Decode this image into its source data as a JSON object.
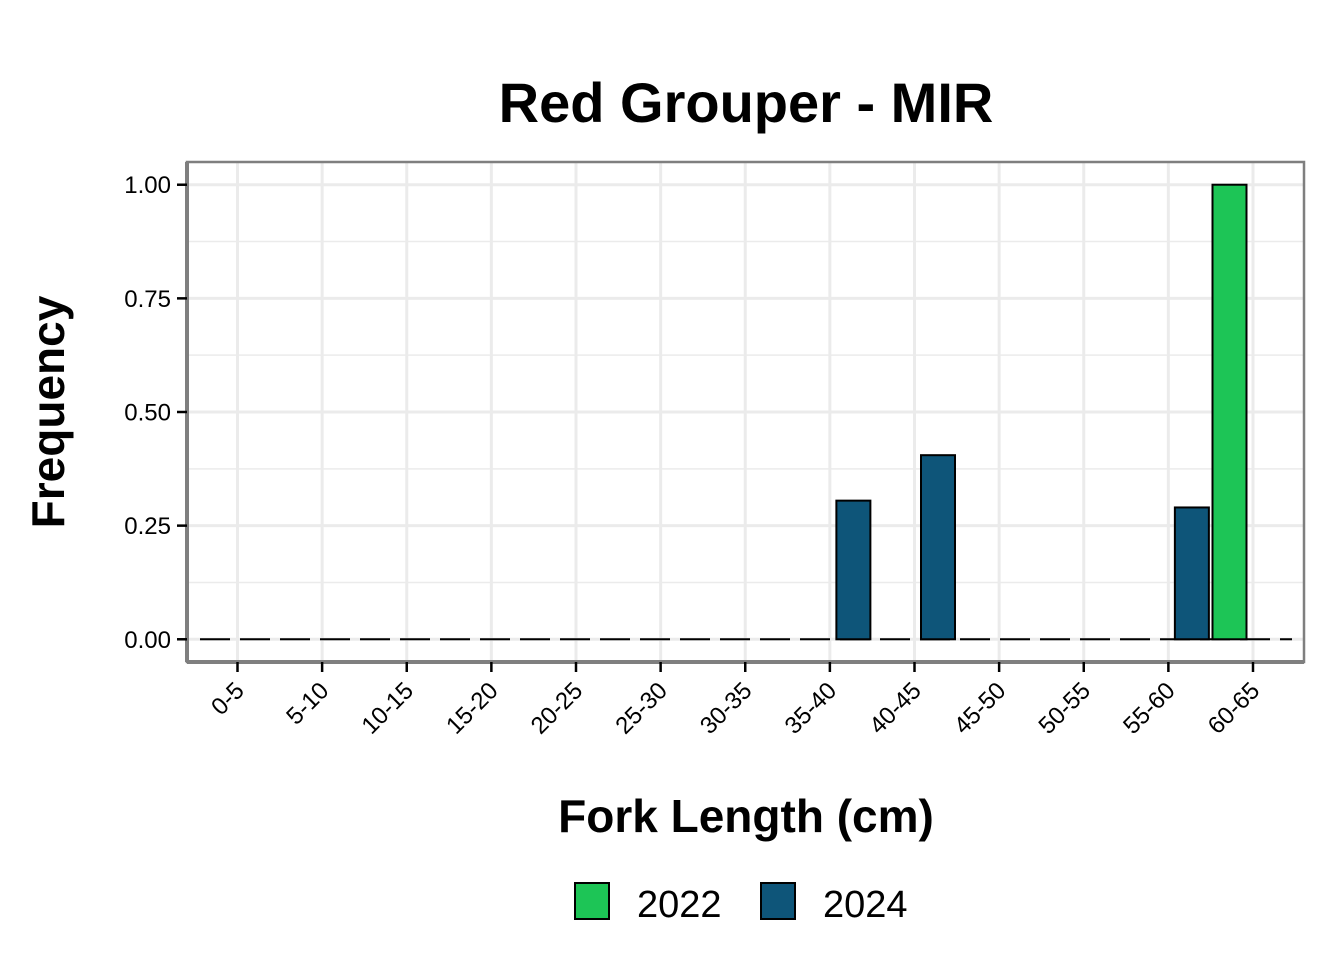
{
  "chart_data": {
    "type": "bar",
    "title": "Red Grouper - MIR",
    "xlabel": "Fork Length (cm)",
    "ylabel": "Frequency",
    "categories": [
      "0-5",
      "5-10",
      "10-15",
      "15-20",
      "20-25",
      "25-30",
      "30-35",
      "35-40",
      "40-45",
      "45-50",
      "50-55",
      "55-60",
      "60-65"
    ],
    "series": [
      {
        "name": "2022",
        "color": "#1DC556",
        "values": [
          0,
          0,
          0,
          0,
          0,
          0,
          0,
          0,
          0,
          0,
          0,
          0,
          1.0
        ]
      },
      {
        "name": "2024",
        "color": "#0E5579",
        "values": [
          0,
          0,
          0,
          0,
          0,
          0,
          0,
          0.305,
          0.405,
          0,
          0,
          0.29,
          0
        ]
      }
    ],
    "ylim": [
      -0.05,
      1.05
    ],
    "yticks": [
      0,
      0.25,
      0.5,
      0.75,
      1.0
    ],
    "ytick_labels": [
      "0.00",
      "0.25",
      "0.50",
      "0.75",
      "1.00"
    ],
    "grid": true,
    "legend_position": "bottom",
    "zero_line": "dashed"
  }
}
